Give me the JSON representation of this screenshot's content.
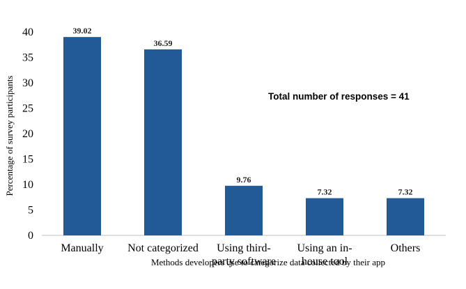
{
  "chart_data": {
    "type": "bar",
    "categories": [
      [
        "Manually"
      ],
      [
        "Not categorized"
      ],
      [
        "Using third-",
        "party software"
      ],
      [
        "Using an in-",
        "house tool"
      ],
      [
        "Others"
      ]
    ],
    "values": [
      39.02,
      36.59,
      9.76,
      7.32,
      7.32
    ],
    "data_labels": [
      "39.02",
      "36.59",
      "9.76",
      "7.32",
      "7.32"
    ],
    "xlabel": "Methods developers use to categorize data collected by their app",
    "ylabel": "Percentage of survey participants",
    "ylim": [
      0,
      40
    ],
    "yticks": [
      0,
      5,
      10,
      15,
      20,
      25,
      30,
      35,
      40
    ],
    "annotation": "Total number of responses = 41",
    "grid": false,
    "legend": "none",
    "bar_color": "#215a96"
  }
}
